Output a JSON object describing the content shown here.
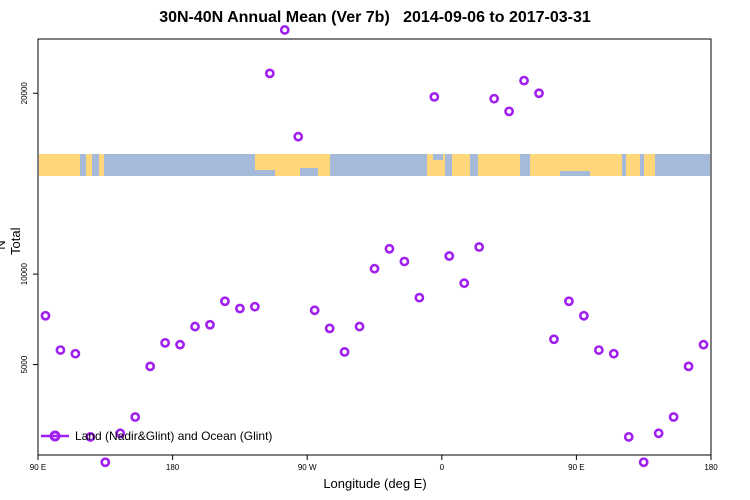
{
  "chart_data": {
    "type": "scatter",
    "title": "30N-40N Annual Mean (Ver 7b)   2014-09-06 to 2017-03-31",
    "xlabel": "Longitude (deg E)",
    "ylabel": "N Total",
    "x_ticks": [
      {
        "value": 90,
        "label": "90 E"
      },
      {
        "value": 180,
        "label": "180"
      },
      {
        "value": 270,
        "label": "90 W"
      },
      {
        "value": 360,
        "label": "0"
      },
      {
        "value": 450,
        "label": "90 E"
      },
      {
        "value": 540,
        "label": "180"
      }
    ],
    "y_ticks": [
      {
        "value": 5000,
        "label": "5000"
      },
      {
        "value": 10000,
        "label": "10000"
      },
      {
        "value": 20000,
        "label": "20000"
      }
    ],
    "xlim": [
      90,
      540
    ],
    "ylim": [
      0,
      23000
    ],
    "legend": {
      "label": "Land (Nadir&Glint) and Ocean (Glint)",
      "position": "bottom-left"
    },
    "series_color": "#a020f0",
    "map_strip_colors": {
      "ocean": "#a5b9d9",
      "land": "#ffd77a"
    },
    "series": [
      {
        "x": [
          95,
          105,
          115,
          125,
          135,
          145,
          155,
          165,
          175,
          185,
          195,
          205,
          215,
          225,
          235,
          245,
          255,
          264,
          275,
          285,
          295,
          305,
          315,
          325,
          335,
          345,
          355,
          365,
          375,
          385,
          395,
          405,
          415,
          425,
          435,
          445,
          455,
          465,
          475,
          485,
          495,
          505,
          515,
          525,
          535
        ],
        "y": [
          7700,
          5800,
          5600,
          1000,
          -400,
          1200,
          2100,
          4900,
          6200,
          6100,
          7100,
          7200,
          8500,
          8100,
          8200,
          21100,
          23500,
          17600,
          8000,
          7000,
          5700,
          7100,
          10300,
          11400,
          10700,
          8700,
          19800,
          11000,
          9500,
          11500,
          19700,
          19000,
          20700,
          20000,
          6400,
          8500,
          7700,
          5800,
          5600,
          1000,
          -400,
          1200,
          2100,
          4900,
          6100
        ]
      }
    ]
  }
}
